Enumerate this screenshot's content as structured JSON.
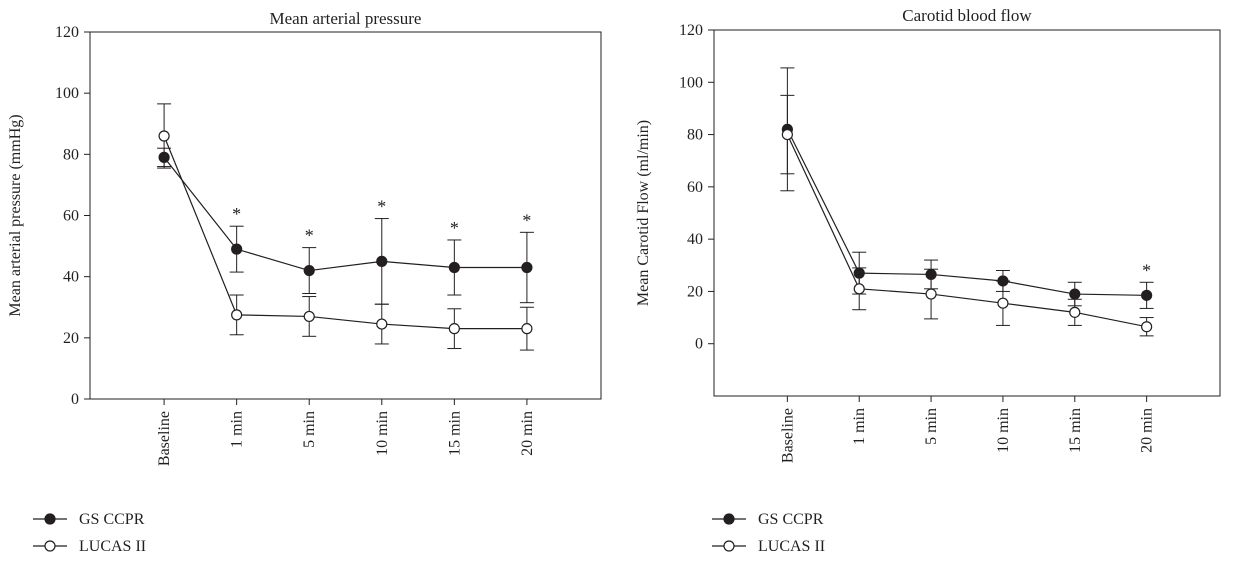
{
  "chart_data": [
    {
      "type": "line",
      "title": "Mean arterial pressure",
      "xlabel": "",
      "ylabel": "Mean arterial pressure (mmHg)",
      "categories": [
        "Baseline",
        "1 min",
        "5 min",
        "10 min",
        "15 min",
        "20 min"
      ],
      "ylim": [
        0,
        120
      ],
      "yticks": [
        "0",
        "20",
        "40",
        "60",
        "80",
        "100",
        "120"
      ],
      "grid": false,
      "legend_position": "bottom-left",
      "series": [
        {
          "name": "GS CCPR",
          "marker": "filled-circle",
          "color": "#231f20",
          "values": [
            79,
            49,
            42,
            45,
            43,
            43
          ],
          "error": [
            3,
            7.5,
            7.5,
            14,
            9,
            11.5
          ]
        },
        {
          "name": "LUCAS II",
          "marker": "open-circle",
          "color": "#231f20",
          "values": [
            86,
            27.5,
            27,
            24.5,
            23,
            23
          ],
          "error": [
            10.5,
            6.5,
            6.5,
            6.5,
            6.5,
            7
          ]
        }
      ],
      "annotations": [
        {
          "category": "1 min",
          "text": "*"
        },
        {
          "category": "5 min",
          "text": "*"
        },
        {
          "category": "10 min",
          "text": "*"
        },
        {
          "category": "15 min",
          "text": "*"
        },
        {
          "category": "20 min",
          "text": "*"
        }
      ]
    },
    {
      "type": "line",
      "title": "Carotid blood flow",
      "xlabel": "",
      "ylabel": "Mean Carotid Flow (ml/min)",
      "categories": [
        "Baseline",
        "1 min",
        "5 min",
        "10 min",
        "15 min",
        "20 min"
      ],
      "ylim": [
        -20,
        120
      ],
      "yticks": [
        "0",
        "20",
        "40",
        "60",
        "80",
        "100",
        "120"
      ],
      "grid": false,
      "legend_position": "bottom-left",
      "series": [
        {
          "name": "GS CCPR",
          "marker": "filled-circle",
          "color": "#231f20",
          "values": [
            82,
            27,
            26.5,
            24,
            19,
            18.5
          ],
          "error": [
            23.5,
            8,
            5.5,
            4,
            4.5,
            5
          ]
        },
        {
          "name": "LUCAS II",
          "marker": "open-circle",
          "color": "#231f20",
          "values": [
            80,
            21,
            19,
            15.5,
            12,
            6.5
          ],
          "error": [
            15,
            8,
            9.5,
            8.5,
            5,
            3.5
          ]
        }
      ],
      "annotations": [
        {
          "category": "20 min",
          "text": "*"
        }
      ]
    }
  ]
}
